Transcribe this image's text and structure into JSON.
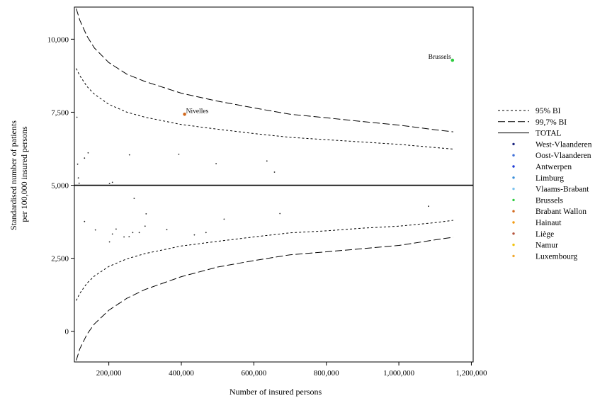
{
  "chart_data": {
    "type": "scatter",
    "title": "",
    "xlabel": "Number of insured persons",
    "ylabel_lines": [
      "Standardised number of patients",
      "per 100,000 insured persons"
    ],
    "xlim": [
      105000,
      1205000
    ],
    "ylim": [
      -1050,
      11100
    ],
    "xticks": [
      {
        "value": 200000,
        "label": "200,000"
      },
      {
        "value": 400000,
        "label": "400,000"
      },
      {
        "value": 600000,
        "label": "600,000"
      },
      {
        "value": 800000,
        "label": "800,000"
      },
      {
        "value": 1000000,
        "label": "1,000,000"
      },
      {
        "value": 1200000,
        "label": "1,200,000"
      }
    ],
    "yticks": [
      {
        "value": 0,
        "label": "0"
      },
      {
        "value": 2500,
        "label": "2,500"
      },
      {
        "value": 5000,
        "label": "5,000"
      },
      {
        "value": 7500,
        "label": "7,500"
      },
      {
        "value": 10000,
        "label": "10,000"
      }
    ],
    "grid": false,
    "legend_position": "right",
    "total_value": 5000,
    "limits": {
      "x": [
        110000,
        120000,
        140000,
        160000,
        200000,
        250000,
        300000,
        400000,
        500000,
        600000,
        700000,
        800000,
        900000,
        1000000,
        1100000,
        1150000
      ],
      "ci95_upper": [
        9000,
        8750,
        8380,
        8120,
        7770,
        7500,
        7330,
        7080,
        6920,
        6770,
        6640,
        6560,
        6480,
        6400,
        6290,
        6240
      ],
      "ci95_lower": [
        1050,
        1300,
        1650,
        1890,
        2220,
        2480,
        2660,
        2920,
        3080,
        3230,
        3370,
        3440,
        3530,
        3600,
        3720,
        3800
      ],
      "ci997_upper": [
        11050,
        10650,
        10100,
        9700,
        9200,
        8800,
        8550,
        8150,
        7880,
        7650,
        7430,
        7310,
        7180,
        7060,
        6900,
        6830
      ],
      "ci997_lower": [
        -1000,
        -600,
        -100,
        250,
        720,
        1130,
        1430,
        1870,
        2200,
        2420,
        2620,
        2720,
        2830,
        2940,
        3130,
        3220
      ]
    },
    "series": [
      {
        "name": "95% BI",
        "kind": "line",
        "style": "short-dash"
      },
      {
        "name": "99,7% BI",
        "kind": "line",
        "style": "long-dash"
      },
      {
        "name": "TOTAL",
        "kind": "line",
        "style": "solid"
      },
      {
        "name": "West-Vlaanderen",
        "kind": "marker",
        "color": "#1a237e"
      },
      {
        "name": "Oost-Vlaanderen",
        "kind": "marker",
        "color": "#3f6fd8"
      },
      {
        "name": "Antwerpen",
        "kind": "marker",
        "color": "#1f3bd6"
      },
      {
        "name": "Limburg",
        "kind": "marker",
        "color": "#3a8fd9"
      },
      {
        "name": "Vlaams-Brabant",
        "kind": "marker",
        "color": "#7cc3ef"
      },
      {
        "name": "Brussels",
        "kind": "marker",
        "color": "#2ecc40"
      },
      {
        "name": "Brabant Wallon",
        "kind": "marker",
        "color": "#d2691e"
      },
      {
        "name": "Hainaut",
        "kind": "marker",
        "color": "#f39c12"
      },
      {
        "name": "Liège",
        "kind": "marker",
        "color": "#b5533c"
      },
      {
        "name": "Namur",
        "kind": "marker",
        "color": "#f1c40f"
      },
      {
        "name": "Luxembourg",
        "kind": "marker",
        "color": "#f0a830"
      }
    ],
    "points": [
      {
        "x": 1148000,
        "y": 9280,
        "color": "#2ecc40",
        "size": 2.3
      },
      {
        "x": 409000,
        "y": 7430,
        "color": "#d2691e",
        "size": 2.3
      },
      {
        "x": 112000,
        "y": 7330,
        "color": "#222222",
        "size": 0.9
      },
      {
        "x": 114000,
        "y": 5720,
        "color": "#222222",
        "size": 0.9
      },
      {
        "x": 116000,
        "y": 5250,
        "color": "#222222",
        "size": 0.9
      },
      {
        "x": 118000,
        "y": 5070,
        "color": "#222222",
        "size": 0.9
      },
      {
        "x": 133000,
        "y": 5930,
        "color": "#222222",
        "size": 0.9
      },
      {
        "x": 143000,
        "y": 6110,
        "color": "#222222",
        "size": 0.9
      },
      {
        "x": 133000,
        "y": 3760,
        "color": "#222222",
        "size": 0.9
      },
      {
        "x": 163000,
        "y": 3470,
        "color": "#222222",
        "size": 0.9
      },
      {
        "x": 202000,
        "y": 5060,
        "color": "#222222",
        "size": 0.9
      },
      {
        "x": 210000,
        "y": 5100,
        "color": "#222222",
        "size": 0.9
      },
      {
        "x": 202000,
        "y": 3060,
        "color": "#222222",
        "size": 0.9
      },
      {
        "x": 210000,
        "y": 3330,
        "color": "#222222",
        "size": 0.9
      },
      {
        "x": 220000,
        "y": 3500,
        "color": "#222222",
        "size": 0.9
      },
      {
        "x": 242000,
        "y": 3230,
        "color": "#222222",
        "size": 0.9
      },
      {
        "x": 256000,
        "y": 3240,
        "color": "#222222",
        "size": 0.9
      },
      {
        "x": 257000,
        "y": 6040,
        "color": "#222222",
        "size": 0.9
      },
      {
        "x": 266000,
        "y": 3380,
        "color": "#222222",
        "size": 0.9
      },
      {
        "x": 270000,
        "y": 4550,
        "color": "#222222",
        "size": 0.9
      },
      {
        "x": 284000,
        "y": 3380,
        "color": "#222222",
        "size": 0.9
      },
      {
        "x": 300000,
        "y": 3600,
        "color": "#222222",
        "size": 0.9
      },
      {
        "x": 303000,
        "y": 4020,
        "color": "#222222",
        "size": 0.9
      },
      {
        "x": 360000,
        "y": 3480,
        "color": "#222222",
        "size": 0.9
      },
      {
        "x": 393000,
        "y": 6060,
        "color": "#222222",
        "size": 0.9
      },
      {
        "x": 436000,
        "y": 3300,
        "color": "#222222",
        "size": 0.9
      },
      {
        "x": 468000,
        "y": 3380,
        "color": "#222222",
        "size": 0.9
      },
      {
        "x": 496000,
        "y": 5740,
        "color": "#222222",
        "size": 0.9
      },
      {
        "x": 518000,
        "y": 3840,
        "color": "#222222",
        "size": 0.9
      },
      {
        "x": 636000,
        "y": 5830,
        "color": "#222222",
        "size": 0.9
      },
      {
        "x": 657000,
        "y": 5450,
        "color": "#222222",
        "size": 0.9
      },
      {
        "x": 672000,
        "y": 4030,
        "color": "#222222",
        "size": 0.9
      },
      {
        "x": 1082000,
        "y": 4280,
        "color": "#222222",
        "size": 0.9
      }
    ],
    "annotations": [
      {
        "text": "Brussels",
        "x": 1148000,
        "y": 9280,
        "side": "left"
      },
      {
        "text": "Nivelles",
        "x": 409000,
        "y": 7430,
        "side": "right"
      }
    ]
  }
}
